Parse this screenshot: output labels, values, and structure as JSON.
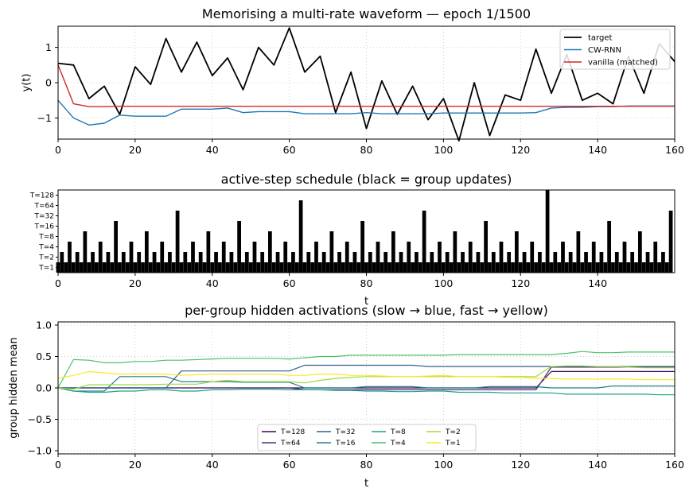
{
  "colors": {
    "target": "#000000",
    "cwrnn": "#1f77b4",
    "vanilla": "#d62728",
    "grid": "#b0b0b0",
    "T128": "#440154",
    "T64": "#46327e",
    "T32": "#365c8d",
    "T16": "#277f8e",
    "T8": "#1fa187",
    "T4": "#4ac16d",
    "T2": "#a0da39",
    "T1": "#fde725"
  },
  "chart_data": [
    {
      "type": "line",
      "title": "Memorising a multi-rate waveform — epoch 1/1500",
      "xlabel": "",
      "ylabel": "y(t)",
      "xlim": [
        0,
        160
      ],
      "ylim": [
        -1.6,
        1.6
      ],
      "xticks": [
        "0",
        "20",
        "40",
        "60",
        "80",
        "100",
        "120",
        "140",
        "160"
      ],
      "yticks": [
        "1",
        "0",
        "−1"
      ],
      "grid": true,
      "legend_position": "upper right",
      "x": [
        0,
        4,
        8,
        12,
        16,
        20,
        24,
        28,
        32,
        36,
        40,
        44,
        48,
        52,
        56,
        60,
        64,
        68,
        72,
        76,
        80,
        84,
        88,
        92,
        96,
        100,
        104,
        108,
        112,
        116,
        120,
        124,
        128,
        132,
        136,
        140,
        144,
        148,
        152,
        156,
        160
      ],
      "series": [
        {
          "name": "target",
          "values": [
            0.55,
            0.5,
            -0.45,
            -0.1,
            -0.9,
            0.45,
            -0.05,
            1.25,
            0.3,
            1.15,
            0.2,
            0.7,
            -0.2,
            1.0,
            0.5,
            1.55,
            0.3,
            0.75,
            -0.85,
            0.3,
            -1.3,
            0.05,
            -0.9,
            -0.1,
            -1.05,
            -0.45,
            -1.65,
            0.0,
            -1.5,
            -0.35,
            -0.5,
            0.95,
            -0.3,
            0.8,
            -0.5,
            -0.3,
            -0.6,
            0.75,
            -0.3,
            1.1,
            0.6
          ]
        },
        {
          "name": "CW-RNN",
          "values": [
            -0.5,
            -1.0,
            -1.2,
            -1.15,
            -0.92,
            -0.95,
            -0.95,
            -0.95,
            -0.75,
            -0.75,
            -0.75,
            -0.72,
            -0.85,
            -0.82,
            -0.82,
            -0.82,
            -0.88,
            -0.88,
            -0.88,
            -0.88,
            -0.85,
            -0.88,
            -0.88,
            -0.88,
            -0.88,
            -0.86,
            -0.86,
            -0.86,
            -0.86,
            -0.86,
            -0.86,
            -0.85,
            -0.72,
            -0.7,
            -0.7,
            -0.68,
            -0.68,
            -0.66,
            -0.66,
            -0.66,
            -0.66
          ]
        },
        {
          "name": "vanilla (matched)",
          "values": [
            0.5,
            -0.6,
            -0.68,
            -0.68,
            -0.67,
            -0.67,
            -0.67,
            -0.67,
            -0.67,
            -0.67,
            -0.67,
            -0.67,
            -0.67,
            -0.67,
            -0.67,
            -0.67,
            -0.67,
            -0.67,
            -0.67,
            -0.67,
            -0.67,
            -0.67,
            -0.67,
            -0.67,
            -0.67,
            -0.67,
            -0.67,
            -0.67,
            -0.67,
            -0.67,
            -0.67,
            -0.67,
            -0.67,
            -0.67,
            -0.67,
            -0.67,
            -0.67,
            -0.67,
            -0.67,
            -0.67,
            -0.67
          ]
        }
      ]
    },
    {
      "type": "bar",
      "title": "active-step schedule  (black = group updates)",
      "xlabel": "t",
      "xlim": [
        0,
        160
      ],
      "xticks": [
        "0",
        "20",
        "40",
        "60",
        "80",
        "100",
        "120",
        "140"
      ],
      "yticks": [
        "T=128",
        "T=64",
        "T=32",
        "T=16",
        "T=8",
        "T=4",
        "T=2",
        "T=1"
      ],
      "group_periods": [
        1,
        2,
        4,
        8,
        16,
        32,
        64,
        128
      ],
      "update_rule": "group with period T updates when (t+1) mod T = 0",
      "steps": 160
    },
    {
      "type": "line",
      "title": "per-group hidden activations  (slow → blue, fast → yellow)",
      "xlabel": "t",
      "ylabel": "group hidden mean",
      "xlim": [
        0,
        160
      ],
      "ylim": [
        -1.05,
        1.05
      ],
      "xticks": [
        "0",
        "20",
        "40",
        "60",
        "80",
        "100",
        "120",
        "140",
        "160"
      ],
      "yticks": [
        "1.0",
        "0.5",
        "0.0",
        "−0.5",
        "−1.0"
      ],
      "grid": true,
      "legend_position": "lower center",
      "x": [
        0,
        4,
        8,
        12,
        16,
        20,
        24,
        28,
        32,
        36,
        40,
        44,
        48,
        52,
        56,
        60,
        64,
        68,
        72,
        76,
        80,
        84,
        88,
        92,
        96,
        100,
        104,
        108,
        112,
        116,
        120,
        124,
        128,
        132,
        136,
        140,
        144,
        148,
        152,
        156,
        160
      ],
      "series": [
        {
          "name": "T=128",
          "values": [
            0.0,
            0.0,
            0.0,
            0.0,
            0.0,
            0.0,
            0.0,
            0.0,
            0.0,
            0.0,
            0.0,
            0.0,
            0.0,
            0.0,
            0.0,
            0.0,
            0.0,
            0.0,
            0.0,
            0.0,
            0.0,
            0.0,
            0.0,
            0.0,
            0.0,
            0.0,
            0.0,
            0.0,
            0.0,
            0.0,
            0.0,
            0.0,
            0.26,
            0.26,
            0.26,
            0.26,
            0.26,
            0.26,
            0.26,
            0.26,
            0.26
          ]
        },
        {
          "name": "T=64",
          "values": [
            0.0,
            0.0,
            0.0,
            0.0,
            0.0,
            0.0,
            0.0,
            0.0,
            0.0,
            0.0,
            0.0,
            0.0,
            0.0,
            0.0,
            0.0,
            0.0,
            -0.03,
            -0.03,
            -0.03,
            -0.03,
            -0.03,
            -0.03,
            -0.03,
            -0.03,
            -0.03,
            -0.03,
            -0.03,
            -0.03,
            -0.03,
            -0.03,
            -0.03,
            -0.03,
            0.33,
            0.33,
            0.33,
            0.33,
            0.33,
            0.33,
            0.33,
            0.33,
            0.33
          ]
        },
        {
          "name": "T=32",
          "values": [
            0.0,
            0.0,
            0.0,
            0.0,
            0.0,
            0.0,
            0.0,
            0.0,
            0.27,
            0.27,
            0.27,
            0.27,
            0.27,
            0.27,
            0.27,
            0.27,
            0.36,
            0.36,
            0.36,
            0.36,
            0.36,
            0.36,
            0.36,
            0.36,
            0.34,
            0.34,
            0.34,
            0.34,
            0.34,
            0.34,
            0.34,
            0.34,
            0.34,
            0.34,
            0.34,
            0.34,
            0.34,
            0.34,
            0.34,
            0.34,
            0.34
          ]
        },
        {
          "name": "T=16",
          "values": [
            0.0,
            -0.05,
            -0.05,
            -0.05,
            0.18,
            0.18,
            0.18,
            0.18,
            0.1,
            0.1,
            0.1,
            0.1,
            0.09,
            0.09,
            0.09,
            0.09,
            0.0,
            0.0,
            0.0,
            0.0,
            0.02,
            0.02,
            0.02,
            0.02,
            0.0,
            0.0,
            0.0,
            0.0,
            0.02,
            0.02,
            0.02,
            0.02,
            0.0,
            0.0,
            0.0,
            0.0,
            0.03,
            0.03,
            0.03,
            0.03,
            0.03
          ]
        },
        {
          "name": "T=8",
          "values": [
            0.0,
            -0.05,
            -0.07,
            -0.07,
            -0.05,
            -0.05,
            -0.03,
            -0.03,
            -0.05,
            -0.05,
            -0.03,
            -0.03,
            -0.02,
            -0.02,
            -0.02,
            -0.03,
            -0.03,
            -0.03,
            -0.04,
            -0.04,
            -0.05,
            -0.05,
            -0.06,
            -0.06,
            -0.05,
            -0.05,
            -0.07,
            -0.07,
            -0.07,
            -0.08,
            -0.08,
            -0.08,
            -0.08,
            -0.1,
            -0.1,
            -0.1,
            -0.1,
            -0.1,
            -0.1,
            -0.11,
            -0.11
          ]
        },
        {
          "name": "T=4",
          "values": [
            0.0,
            0.45,
            0.44,
            0.4,
            0.4,
            0.42,
            0.42,
            0.44,
            0.44,
            0.45,
            0.46,
            0.47,
            0.47,
            0.47,
            0.47,
            0.46,
            0.48,
            0.5,
            0.5,
            0.52,
            0.52,
            0.52,
            0.52,
            0.52,
            0.52,
            0.52,
            0.53,
            0.53,
            0.53,
            0.53,
            0.53,
            0.53,
            0.53,
            0.55,
            0.58,
            0.56,
            0.56,
            0.57,
            0.57,
            0.57,
            0.57
          ]
        },
        {
          "name": "T=2",
          "values": [
            0.0,
            -0.02,
            0.05,
            0.05,
            0.05,
            0.05,
            0.05,
            0.06,
            0.06,
            0.06,
            0.1,
            0.12,
            0.1,
            0.1,
            0.1,
            0.1,
            0.08,
            0.12,
            0.15,
            0.17,
            0.18,
            0.18,
            0.18,
            0.18,
            0.18,
            0.18,
            0.18,
            0.18,
            0.18,
            0.18,
            0.18,
            0.18,
            0.34,
            0.35,
            0.35,
            0.34,
            0.34,
            0.33,
            0.32,
            0.32,
            0.32
          ]
        },
        {
          "name": "T=1",
          "values": [
            0.15,
            0.2,
            0.26,
            0.24,
            0.22,
            0.22,
            0.22,
            0.22,
            0.2,
            0.21,
            0.22,
            0.22,
            0.22,
            0.22,
            0.22,
            0.2,
            0.2,
            0.22,
            0.22,
            0.2,
            0.2,
            0.19,
            0.18,
            0.18,
            0.19,
            0.2,
            0.18,
            0.18,
            0.18,
            0.17,
            0.17,
            0.15,
            0.15,
            0.14,
            0.14,
            0.14,
            0.14,
            0.14,
            0.13,
            0.13,
            0.13
          ]
        }
      ]
    }
  ]
}
